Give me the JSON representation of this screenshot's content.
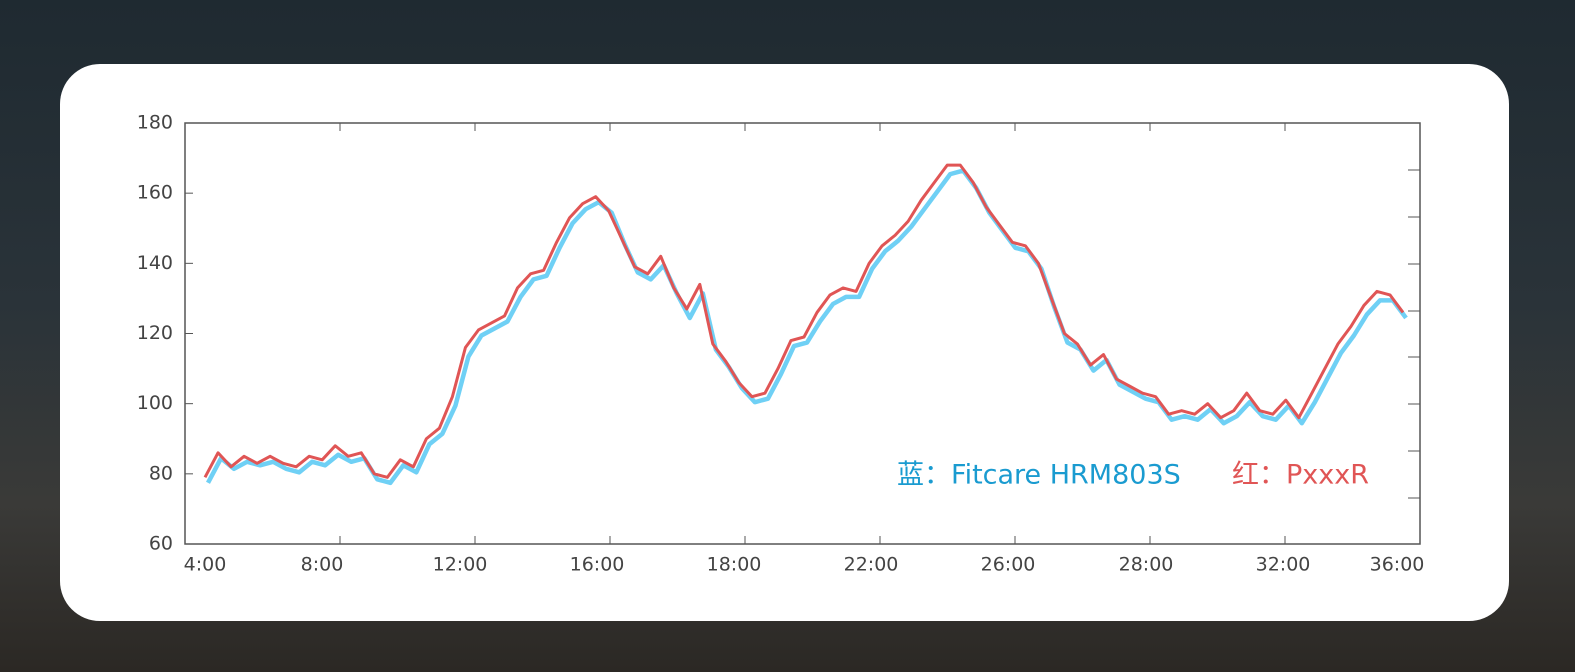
{
  "chart_data": {
    "type": "line",
    "x_labels": [
      "4:00",
      "8:00",
      "12:00",
      "16:00",
      "18:00",
      "22:00",
      "26:00",
      "28:00",
      "32:00",
      "36:00"
    ],
    "ylim": [
      60,
      180
    ],
    "yticks": [
      60,
      80,
      100,
      120,
      140,
      160,
      180
    ],
    "series": [
      {
        "name": "蓝：Fitcare HRM803S",
        "color": "#6fd0f5",
        "values": [
          78,
          85,
          82,
          84,
          83,
          84,
          82,
          81,
          84,
          83,
          86,
          84,
          85,
          79,
          78,
          83,
          81,
          89,
          92,
          100,
          114,
          120,
          122,
          124,
          131,
          136,
          137,
          145,
          152,
          156,
          158,
          155,
          146,
          138,
          136,
          140,
          132,
          125,
          132,
          116,
          111,
          105,
          101,
          102,
          109,
          117,
          118,
          124,
          129,
          131,
          131,
          139,
          144,
          147,
          151,
          156,
          161,
          166,
          167,
          162,
          155,
          150,
          145,
          144,
          139,
          128,
          118,
          116,
          110,
          113,
          106,
          104,
          102,
          101,
          96,
          97,
          96,
          99,
          95,
          97,
          101,
          97,
          96,
          100,
          95,
          101,
          108,
          115,
          120,
          126,
          130,
          130,
          125
        ],
        "label_color": "#1a9bd0"
      },
      {
        "name": "红：PxxxR",
        "color": "#e05555",
        "values": [
          79,
          86,
          82,
          85,
          83,
          85,
          83,
          82,
          85,
          84,
          88,
          85,
          86,
          80,
          79,
          84,
          82,
          90,
          93,
          102,
          116,
          121,
          123,
          125,
          133,
          137,
          138,
          146,
          153,
          157,
          159,
          155,
          147,
          139,
          137,
          142,
          133,
          127,
          134,
          117,
          112,
          106,
          102,
          103,
          110,
          118,
          119,
          126,
          131,
          133,
          132,
          140,
          145,
          148,
          152,
          158,
          163,
          168,
          168,
          163,
          156,
          151,
          146,
          145,
          140,
          130,
          120,
          117,
          111,
          114,
          107,
          105,
          103,
          102,
          97,
          98,
          97,
          100,
          96,
          98,
          103,
          98,
          97,
          101,
          96,
          103,
          110,
          117,
          122,
          128,
          132,
          131,
          126
        ],
        "label_color": "#e05555"
      }
    ]
  }
}
